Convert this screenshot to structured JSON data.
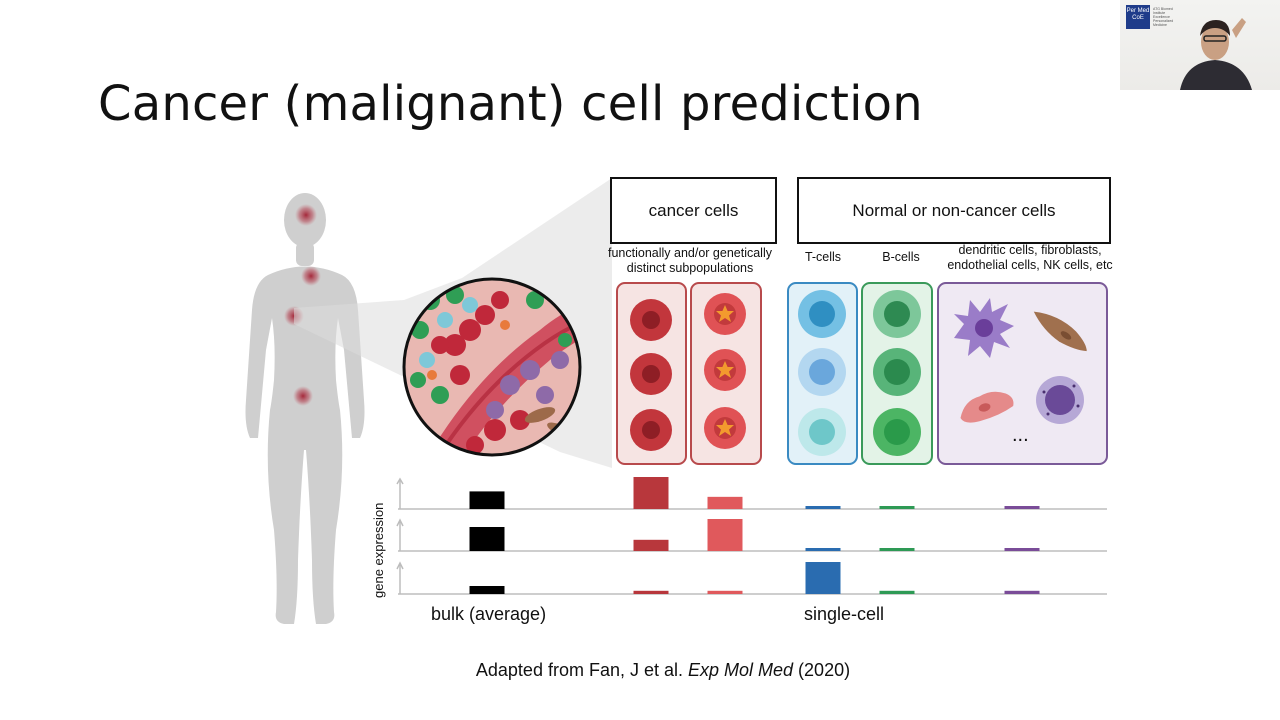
{
  "slide": {
    "title": "Cancer (malignant) cell prediction"
  },
  "header_boxes": {
    "cancer": "cancer cells",
    "normal": "Normal or non-cancer cells"
  },
  "subtitles": {
    "cancer_line1": "functionally and/or genetically",
    "cancer_line2": "distinct subpopulations",
    "tcells": "T-cells",
    "bcells": "B-cells",
    "other_line1": "dendritic cells, fibroblasts,",
    "other_line2": "endothelial cells, NK cells, etc"
  },
  "ellipsis": "...",
  "axis": {
    "ylabel": "gene expression",
    "bulk": "bulk (average)",
    "single": "single-cell"
  },
  "citation": {
    "prefix": "Adapted from Fan, J et al. ",
    "journal": "Exp Mol Med",
    "year": " (2020)"
  },
  "webcam": {
    "logo": "Per Med CoE",
    "caption": "ATG Biomed Institute Excellence Personalized Medicine"
  },
  "colors": {
    "cancer_dark": "#b8373c",
    "cancer_light": "#e0595c",
    "tcell": "#2a6cb0",
    "bcell": "#2e9a55",
    "other": "#7a4c98",
    "bulk": "#000000"
  },
  "chart_data": {
    "type": "bar",
    "categories": [
      "bulk",
      "cancer subpopulation 1",
      "cancer subpopulation 2",
      "T-cells",
      "B-cells",
      "other cells"
    ],
    "series": [
      {
        "values": [
          0.55,
          1.0,
          0.38,
          0.07,
          0.07,
          0.07
        ]
      },
      {
        "values": [
          0.75,
          0.35,
          1.0,
          0.07,
          0.07,
          0.07
        ]
      },
      {
        "values": [
          0.25,
          0.1,
          0.1,
          1.0,
          0.1,
          0.1
        ]
      }
    ],
    "ylabel": "gene expression"
  }
}
